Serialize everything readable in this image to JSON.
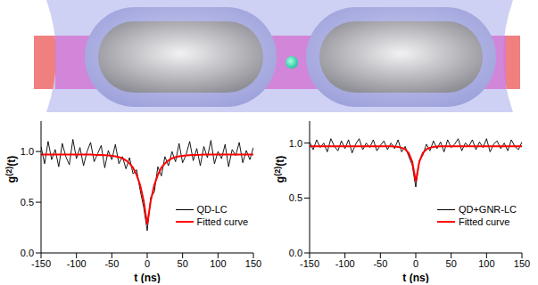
{
  "chart_data": [
    {
      "type": "line",
      "xlabel": "t (ns)",
      "ylabel": "g(2)(t)",
      "legend": "lower right",
      "x": [
        -150,
        -145,
        -140,
        -135,
        -130,
        -125,
        -120,
        -115,
        -110,
        -105,
        -100,
        -95,
        -90,
        -85,
        -80,
        -75,
        -70,
        -65,
        -60,
        -55,
        -50,
        -45,
        -40,
        -35,
        -30,
        -25,
        -20,
        -15,
        -10,
        -5,
        0,
        5,
        10,
        15,
        20,
        25,
        30,
        35,
        40,
        45,
        50,
        55,
        60,
        65,
        70,
        75,
        80,
        85,
        90,
        95,
        100,
        105,
        110,
        115,
        120,
        125,
        130,
        135,
        140,
        145,
        150
      ],
      "xlim": [
        -150,
        150
      ],
      "xticks": [
        -150,
        -100,
        -50,
        0,
        50,
        100,
        150
      ],
      "ylim": [
        0,
        1.3
      ],
      "yticks": [
        {
          "value": 0,
          "label": "0.0"
        },
        {
          "value": 0.5,
          "label": "0.5"
        },
        {
          "value": 1,
          "label": "1.0"
        }
      ],
      "series": [
        {
          "name": "QD-LC",
          "color": "#000000",
          "values": [
            1.05,
            0.88,
            1.1,
            0.92,
            1.02,
            0.85,
            1.08,
            0.95,
            0.87,
            1.12,
            0.93,
            1.04,
            0.86,
            1.0,
            1.09,
            0.9,
            0.98,
            1.06,
            0.84,
            1.01,
            0.92,
            1.07,
            0.88,
            0.95,
            0.83,
            0.94,
            0.78,
            0.82,
            0.62,
            0.45,
            0.22,
            0.55,
            0.6,
            0.85,
            0.76,
            0.95,
            0.86,
            1.0,
            0.9,
            1.08,
            0.89,
            0.97,
            1.1,
            0.91,
            1.03,
            0.86,
            1.05,
            0.94,
            1.11,
            0.88,
            1.0,
            0.93,
            1.07,
            0.85,
            1.02,
            0.96,
            1.09,
            0.89,
            1.01,
            0.92,
            1.04
          ]
        },
        {
          "name": "Fitted curve",
          "color": "#ff0000",
          "values": [
            0.97,
            0.97,
            0.97,
            0.97,
            0.97,
            0.97,
            0.97,
            0.97,
            0.97,
            0.97,
            0.97,
            0.97,
            0.97,
            0.97,
            0.97,
            0.968,
            0.967,
            0.966,
            0.965,
            0.962,
            0.958,
            0.953,
            0.945,
            0.933,
            0.913,
            0.884,
            0.84,
            0.77,
            0.67,
            0.515,
            0.28,
            0.515,
            0.67,
            0.77,
            0.84,
            0.884,
            0.913,
            0.933,
            0.945,
            0.953,
            0.958,
            0.962,
            0.965,
            0.966,
            0.967,
            0.968,
            0.97,
            0.97,
            0.97,
            0.97,
            0.97,
            0.97,
            0.97,
            0.97,
            0.97,
            0.97,
            0.97,
            0.97,
            0.97,
            0.97,
            0.97
          ]
        }
      ]
    },
    {
      "type": "line",
      "xlabel": "t (ns)",
      "ylabel": "g(2)(t)",
      "legend": "lower right",
      "x": [
        -150,
        -145,
        -140,
        -135,
        -130,
        -125,
        -120,
        -115,
        -110,
        -105,
        -100,
        -95,
        -90,
        -85,
        -80,
        -75,
        -70,
        -65,
        -60,
        -55,
        -50,
        -45,
        -40,
        -35,
        -30,
        -25,
        -20,
        -15,
        -10,
        -5,
        0,
        5,
        10,
        15,
        20,
        25,
        30,
        35,
        40,
        45,
        50,
        55,
        60,
        65,
        70,
        75,
        80,
        85,
        90,
        95,
        100,
        105,
        110,
        115,
        120,
        125,
        130,
        135,
        140,
        145,
        150
      ],
      "xlim": [
        -150,
        150
      ],
      "xticks": [
        -150,
        -100,
        -50,
        0,
        50,
        100,
        150
      ],
      "ylim": [
        0,
        1.2
      ],
      "yticks": [
        {
          "value": 0,
          "label": "0.0"
        },
        {
          "value": 0.5,
          "label": "0.5"
        },
        {
          "value": 1,
          "label": "1.0"
        }
      ],
      "series": [
        {
          "name": "QD+GNR-LC",
          "color": "#000000",
          "values": [
            1.01,
            0.94,
            1.03,
            0.96,
            1.0,
            0.92,
            1.04,
            0.97,
            0.93,
            1.02,
            0.95,
            1.03,
            0.91,
            0.99,
            1.04,
            0.94,
            1.0,
            0.96,
            1.03,
            0.93,
            0.98,
            1.02,
            0.94,
            1.0,
            0.95,
            1.03,
            0.92,
            0.97,
            0.88,
            0.8,
            0.6,
            0.84,
            0.89,
            0.99,
            0.93,
            1.02,
            0.95,
            1.01,
            0.92,
            1.03,
            0.96,
            0.99,
            1.04,
            0.93,
            1.0,
            0.97,
            1.03,
            0.94,
            1.01,
            0.96,
            1.04,
            0.92,
            0.99,
            1.02,
            0.95,
            1.0,
            0.93,
            1.03,
            0.97,
            0.94,
            1.01
          ]
        },
        {
          "name": "Fitted curve",
          "color": "#ff0000",
          "values": [
            0.97,
            0.97,
            0.97,
            0.97,
            0.97,
            0.97,
            0.97,
            0.97,
            0.97,
            0.97,
            0.97,
            0.97,
            0.97,
            0.97,
            0.97,
            0.97,
            0.97,
            0.97,
            0.97,
            0.97,
            0.97,
            0.97,
            0.97,
            0.97,
            0.968,
            0.965,
            0.958,
            0.944,
            0.91,
            0.831,
            0.65,
            0.831,
            0.91,
            0.944,
            0.958,
            0.965,
            0.968,
            0.97,
            0.97,
            0.97,
            0.97,
            0.97,
            0.97,
            0.97,
            0.97,
            0.97,
            0.97,
            0.97,
            0.97,
            0.97,
            0.97,
            0.97,
            0.97,
            0.97,
            0.97,
            0.97,
            0.97,
            0.97,
            0.97,
            0.97,
            0.97
          ]
        }
      ]
    }
  ]
}
